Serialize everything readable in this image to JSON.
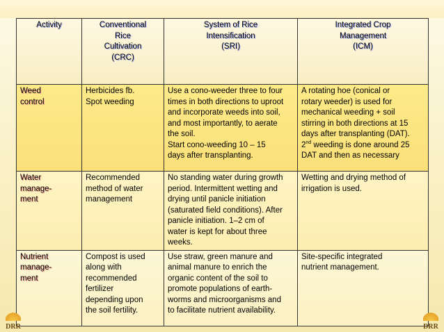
{
  "headers": {
    "activity": "Activity",
    "crc": [
      "Conventional",
      "Rice",
      "Cultivation",
      "(CRC)"
    ],
    "sri": [
      "System of Rice",
      "Intensification",
      "(SRI)"
    ],
    "icm": [
      "Integrated Crop",
      "Management",
      "(ICM)"
    ]
  },
  "rows": [
    {
      "activity": [
        "Weed",
        "control"
      ],
      "crc": [
        "Herbicides fb.",
        "Spot weeding"
      ],
      "sri": [
        "Use a cono-weeder three to four",
        "times in both directions to uproot",
        "and incorporate weeds into soil,",
        "and most importantly, to aerate",
        "the soil.",
        "Start cono-weeding 10 – 15",
        "days after transplanting."
      ],
      "icm": [
        "A rotating hoe (conical or",
        "rotary weeder) is used for",
        "mechanical weeding + soil",
        "stirring in both directions at 15",
        "days after transplanting (DAT)."
      ],
      "icm_ord_pre": "2",
      "icm_ord_sup": "nd",
      "icm_ord_post": " weeding is done around 25",
      "icm_last": "DAT and then as necessary"
    },
    {
      "activity": [
        "Water",
        "manage-",
        "ment"
      ],
      "crc": [
        "Recommended",
        "method of water",
        "management"
      ],
      "sri": [
        "No standing water during growth",
        "period.  Intermittent wetting and",
        "drying until panicle initiation",
        "(saturated field conditions). After",
        "panicle initiation. 1–2 cm of",
        "water is kept for about three",
        "weeks."
      ],
      "icm": [
        "Wetting and drying method of",
        "irrigation is used."
      ]
    },
    {
      "activity": [
        "Nutrient",
        "manage-",
        "ment"
      ],
      "crc": [
        "Compost is used",
        "along with",
        "recommended",
        "fertilizer",
        "depending upon",
        "the soil fertility."
      ],
      "sri": [
        "Use straw, green manure and",
        "animal manure to enrich the",
        "organic content of the soil to",
        "promote populations of earth-",
        "worms and microorganisms and",
        "to facilitate nutrient availability."
      ],
      "icm": [
        "Site-specific  integrated",
        "nutrient management."
      ]
    }
  ],
  "logo_text": "DRR",
  "colors": {
    "header_text": "#1a2fd0",
    "activity_text": "#d41a00",
    "row1_bg": "#fde27c"
  }
}
